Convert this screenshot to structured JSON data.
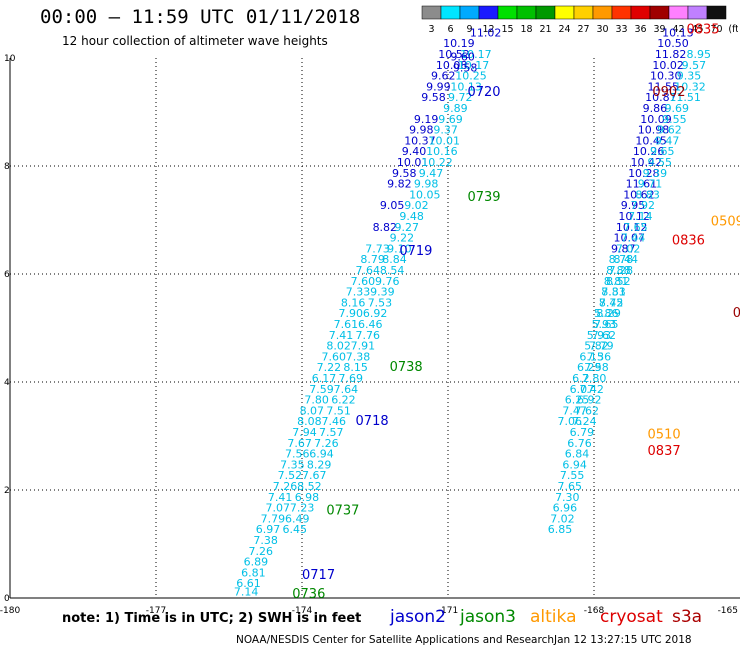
{
  "header": {
    "title": "00:00 – 11:59 UTC 01/11/2018",
    "subtitle": "12 hour collection of altimeter wave heights"
  },
  "colorbar": {
    "labels": [
      "3",
      "6",
      "9",
      "12",
      "15",
      "18",
      "21",
      "24",
      "27",
      "30",
      "33",
      "36",
      "39",
      "42",
      "45",
      "70",
      "(ft)"
    ],
    "colors": [
      "#8c8c8c",
      "#00e5ff",
      "#00aaff",
      "#1a1aff",
      "#00e000",
      "#00c000",
      "#009900",
      "#ffff00",
      "#ffd000",
      "#ff9900",
      "#ff3300",
      "#e00000",
      "#a00000",
      "#ff80ff",
      "#c080ff",
      "#101010"
    ]
  },
  "footer": {
    "note": "note: 1) Time is in UTC; 2) SWH is in feet",
    "credit": "NOAA/NESDIS Center for Satellite Applications and Research",
    "stamp": "Jan 12 13:27:15 UTC 2018",
    "satellites": [
      {
        "name": "jason2",
        "color": "#0000cc"
      },
      {
        "name": "jason3",
        "color": "#008800"
      },
      {
        "name": "altika",
        "color": "#ff9900"
      },
      {
        "name": "cryosat",
        "color": "#dd0000"
      },
      {
        "name": "s3a",
        "color": "#aa0000"
      }
    ]
  },
  "chart_data": {
    "type": "scatter",
    "xlim": [
      -180,
      -165
    ],
    "ylim": [
      0,
      10
    ],
    "xticks": [
      "-180",
      "-177",
      "-174",
      "-171",
      "-168",
      "-165"
    ],
    "yticks": [
      "0",
      "2",
      "4",
      "6",
      "8",
      "10"
    ],
    "grid": true,
    "colors": {
      "cyan": "#00bfe6",
      "blue": "#0000cc",
      "green": "#008800",
      "orange": "#ff9900",
      "red": "#dd0000",
      "darkred": "#990000"
    },
    "series": [
      {
        "name": "track-A-blue",
        "color": "blue",
        "points": [
          [
            -171.1,
            10.2,
            "10.19"
          ],
          [
            -171.2,
            10.0,
            "10.52"
          ],
          [
            -171.25,
            9.8,
            "10.08"
          ],
          [
            -171.35,
            9.6,
            "9.62"
          ],
          [
            -171.45,
            9.4,
            "9.99"
          ],
          [
            -171.55,
            9.2,
            "9.58"
          ],
          [
            -171.7,
            8.8,
            "9.19"
          ],
          [
            -171.8,
            8.6,
            "9.98"
          ],
          [
            -171.9,
            8.4,
            "10.37"
          ],
          [
            -171.95,
            8.2,
            "9.40"
          ],
          [
            -172.05,
            8.0,
            "10.01"
          ],
          [
            -172.15,
            7.8,
            "9.58"
          ],
          [
            -172.25,
            7.6,
            "9.82"
          ],
          [
            -172.4,
            7.2,
            "9.05"
          ],
          [
            -172.55,
            6.8,
            "8.82"
          ]
        ]
      },
      {
        "name": "track-A-cyan",
        "color": "cyan",
        "points": [
          [
            -172.7,
            6.4,
            "7.73"
          ],
          [
            -172.8,
            6.2,
            "8.79"
          ],
          [
            -172.9,
            6.0,
            "7.64"
          ],
          [
            -173.0,
            5.8,
            "7.60"
          ],
          [
            -173.1,
            5.6,
            "7.33"
          ],
          [
            -173.2,
            5.4,
            "8.16"
          ],
          [
            -173.25,
            5.2,
            "7.90"
          ],
          [
            -173.35,
            5.0,
            "7.61"
          ],
          [
            -173.45,
            4.8,
            "7.41"
          ],
          [
            -173.5,
            4.6,
            "8.02"
          ],
          [
            -173.6,
            4.4,
            "7.60"
          ],
          [
            -173.7,
            4.2,
            "7.22"
          ],
          [
            -173.8,
            4.0,
            "6.17"
          ],
          [
            -173.85,
            3.8,
            "7.59"
          ],
          [
            -173.95,
            3.6,
            "7.80"
          ],
          [
            -174.05,
            3.4,
            "8.07"
          ],
          [
            -174.1,
            3.2,
            "8.08"
          ],
          [
            -174.2,
            3.0,
            "7.94"
          ],
          [
            -174.3,
            2.8,
            "7.67"
          ],
          [
            -174.35,
            2.6,
            "7.56"
          ],
          [
            -174.45,
            2.4,
            "7.35"
          ],
          [
            -174.5,
            2.2,
            "7.52"
          ],
          [
            -174.6,
            2.0,
            "7.26"
          ],
          [
            -174.7,
            1.8,
            "7.41"
          ],
          [
            -174.75,
            1.6,
            "7.07"
          ],
          [
            -174.85,
            1.4,
            "7.79"
          ],
          [
            -174.95,
            1.2,
            "6.97"
          ],
          [
            -175.0,
            1.0,
            "7.38"
          ],
          [
            -175.1,
            0.8,
            "7.26"
          ],
          [
            -175.2,
            0.6,
            "6.89"
          ],
          [
            -175.25,
            0.4,
            "6.81"
          ],
          [
            -175.35,
            0.2,
            "6.61"
          ],
          [
            -175.4,
            0.05,
            "7.14"
          ]
        ]
      },
      {
        "name": "track-B-cyan",
        "color": "cyan",
        "points": [
          [
            -170.75,
            10.0,
            "10.17"
          ],
          [
            -170.8,
            9.8,
            "10.17"
          ],
          [
            -170.85,
            9.6,
            "10.25"
          ],
          [
            -170.95,
            9.4,
            "10.13"
          ],
          [
            -171.0,
            9.2,
            "9.72"
          ],
          [
            -171.1,
            9.0,
            "9.89"
          ],
          [
            -171.2,
            8.8,
            "9.69"
          ],
          [
            -171.3,
            8.6,
            "9.37"
          ],
          [
            -171.4,
            8.4,
            "10.01"
          ],
          [
            -171.45,
            8.2,
            "10.16"
          ],
          [
            -171.55,
            8.0,
            "10.22"
          ],
          [
            -171.6,
            7.8,
            "9.47"
          ],
          [
            -171.7,
            7.6,
            "9.98"
          ],
          [
            -171.8,
            7.4,
            "10.05"
          ],
          [
            -171.9,
            7.2,
            "9.02"
          ],
          [
            -172.0,
            7.0,
            "9.48"
          ],
          [
            -172.1,
            6.8,
            "9.27"
          ],
          [
            -172.2,
            6.6,
            "9.22"
          ],
          [
            -172.25,
            6.4,
            "9.10"
          ],
          [
            -172.35,
            6.2,
            "8.84"
          ],
          [
            -172.4,
            6.0,
            "8.54"
          ],
          [
            -172.5,
            5.8,
            "9.76"
          ],
          [
            -172.6,
            5.6,
            "9.39"
          ],
          [
            -172.65,
            5.4,
            "7.53"
          ],
          [
            -172.75,
            5.2,
            "6.92"
          ],
          [
            -172.85,
            5.0,
            "6.46"
          ],
          [
            -172.9,
            4.8,
            "7.76"
          ],
          [
            -173.0,
            4.6,
            "7.91"
          ],
          [
            -173.1,
            4.4,
            "7.38"
          ],
          [
            -173.15,
            4.2,
            "8.15"
          ],
          [
            -173.25,
            4.0,
            "7.69"
          ],
          [
            -173.35,
            3.8,
            "7.64"
          ],
          [
            -173.4,
            3.6,
            "6.22"
          ],
          [
            -173.5,
            3.4,
            "7.51"
          ],
          [
            -173.6,
            3.2,
            "7.46"
          ],
          [
            -173.65,
            3.0,
            "7.57"
          ],
          [
            -173.75,
            2.8,
            "7.26"
          ],
          [
            -173.85,
            2.6,
            "6.94"
          ],
          [
            -173.9,
            2.4,
            "8.29"
          ],
          [
            -174.0,
            2.2,
            "7.67"
          ],
          [
            -174.1,
            2.0,
            "8.52"
          ],
          [
            -174.15,
            1.8,
            "6.98"
          ],
          [
            -174.25,
            1.6,
            "7.23"
          ],
          [
            -174.35,
            1.4,
            "6.49"
          ],
          [
            -174.4,
            1.2,
            "6.45"
          ]
        ]
      },
      {
        "name": "track-B-blue",
        "color": "blue",
        "points": [
          [
            -170.55,
            10.4,
            "11.02"
          ],
          [
            -170.95,
            9.95,
            "9.60"
          ],
          [
            -170.9,
            9.75,
            "9.58"
          ]
        ]
      },
      {
        "name": "track-C-blue",
        "color": "blue",
        "points": [
          [
            -166.6,
            10.4,
            "10.13"
          ],
          [
            -166.7,
            10.2,
            "10.50"
          ],
          [
            -166.75,
            10.0,
            "11.82"
          ],
          [
            -166.8,
            9.8,
            "10.02"
          ],
          [
            -166.85,
            9.6,
            "10.30"
          ],
          [
            -166.9,
            9.4,
            "11.55"
          ],
          [
            -166.95,
            9.2,
            "10.87"
          ],
          [
            -167.0,
            9.0,
            "9.86"
          ],
          [
            -167.05,
            8.8,
            "10.09"
          ],
          [
            -167.1,
            8.6,
            "10.98"
          ],
          [
            -167.15,
            8.4,
            "10.45"
          ],
          [
            -167.2,
            8.2,
            "10.26"
          ],
          [
            -167.25,
            8.0,
            "10.42"
          ],
          [
            -167.3,
            7.8,
            "10.28"
          ],
          [
            -167.35,
            7.6,
            "11.61"
          ],
          [
            -167.4,
            7.4,
            "10.62"
          ],
          [
            -167.45,
            7.2,
            "9.95"
          ],
          [
            -167.5,
            7.0,
            "10.12"
          ],
          [
            -167.55,
            6.8,
            "10.12"
          ],
          [
            -167.6,
            6.6,
            "10.07"
          ],
          [
            -167.65,
            6.4,
            "9.87"
          ]
        ]
      },
      {
        "name": "track-C-cyan",
        "color": "cyan",
        "points": [
          [
            -167.7,
            6.2,
            "8.78"
          ],
          [
            -167.75,
            6.0,
            "8.88"
          ],
          [
            -167.8,
            5.8,
            "8.81"
          ],
          [
            -167.85,
            5.6,
            "8.83"
          ],
          [
            -167.9,
            5.4,
            "8.45"
          ],
          [
            -167.95,
            5.2,
            "8.29"
          ],
          [
            -168.0,
            5.0,
            "7.65"
          ],
          [
            -168.05,
            4.8,
            "7.62"
          ],
          [
            -168.1,
            4.6,
            "7.79"
          ],
          [
            -168.15,
            4.4,
            "7.36"
          ],
          [
            -168.2,
            4.2,
            "7.58"
          ],
          [
            -168.25,
            4.0,
            "7.80"
          ],
          [
            -168.3,
            3.8,
            "7.42"
          ],
          [
            -168.35,
            3.6,
            "6.92"
          ],
          [
            -168.4,
            3.4,
            "7.62"
          ],
          [
            -168.45,
            3.2,
            "7.24"
          ],
          [
            -168.5,
            3.0,
            "6.79"
          ],
          [
            -168.55,
            2.8,
            "6.76"
          ],
          [
            -168.6,
            2.6,
            "6.84"
          ],
          [
            -168.65,
            2.4,
            "6.94"
          ],
          [
            -168.7,
            2.2,
            "7.55"
          ],
          [
            -168.75,
            2.0,
            "7.65"
          ],
          [
            -168.8,
            1.8,
            "7.30"
          ],
          [
            -168.85,
            1.6,
            "6.96"
          ],
          [
            -168.9,
            1.4,
            "7.02"
          ],
          [
            -168.95,
            1.2,
            "6.85"
          ]
        ]
      },
      {
        "name": "track-D-cyan",
        "color": "cyan",
        "points": [
          [
            -166.1,
            10.0,
            "8.95"
          ],
          [
            -166.2,
            9.8,
            "9.57"
          ],
          [
            -166.3,
            9.6,
            "9.35"
          ],
          [
            -166.35,
            9.4,
            "10.32"
          ],
          [
            -166.45,
            9.2,
            "11.51"
          ],
          [
            -166.55,
            9.0,
            "9.69"
          ],
          [
            -166.6,
            8.8,
            "9.55"
          ],
          [
            -166.7,
            8.6,
            "9.62"
          ],
          [
            -166.75,
            8.4,
            "9.47"
          ],
          [
            -166.85,
            8.2,
            "9.65"
          ],
          [
            -166.9,
            8.0,
            "9.55"
          ],
          [
            -167.0,
            7.8,
            "9.39"
          ],
          [
            -167.1,
            7.6,
            "9.71"
          ],
          [
            -167.15,
            7.4,
            "8.83"
          ],
          [
            -167.25,
            7.2,
            "7.92"
          ],
          [
            -167.3,
            7.0,
            "7.14"
          ],
          [
            -167.4,
            6.8,
            "7.65"
          ],
          [
            -167.45,
            6.6,
            "7.44"
          ],
          [
            -167.55,
            6.4,
            "7.02"
          ],
          [
            -167.6,
            6.2,
            "8.44"
          ],
          [
            -167.7,
            6.0,
            "7.28"
          ],
          [
            -167.75,
            5.8,
            "8.52"
          ],
          [
            -167.85,
            5.6,
            "7.31"
          ],
          [
            -167.9,
            5.4,
            "7.72"
          ],
          [
            -168.0,
            5.2,
            "5.86"
          ],
          [
            -168.05,
            5.0,
            "5.93"
          ],
          [
            -168.15,
            4.8,
            "5.93"
          ],
          [
            -168.2,
            4.6,
            "5.82"
          ],
          [
            -168.3,
            4.4,
            "6.15"
          ],
          [
            -168.35,
            4.2,
            "6.29"
          ],
          [
            -168.45,
            4.0,
            "6.2"
          ],
          [
            -168.5,
            3.8,
            "6.07"
          ],
          [
            -168.6,
            3.6,
            "6.25"
          ],
          [
            -168.65,
            3.4,
            "7.47"
          ],
          [
            -168.75,
            3.2,
            "7.06"
          ]
        ]
      }
    ],
    "annotations": [
      {
        "x": -170.6,
        "y": 9.3,
        "text": "0720",
        "color": "blue"
      },
      {
        "x": -170.6,
        "y": 7.35,
        "text": "0739",
        "color": "green"
      },
      {
        "x": -172.0,
        "y": 6.35,
        "text": "0719",
        "color": "blue"
      },
      {
        "x": -172.2,
        "y": 4.2,
        "text": "0738",
        "color": "green"
      },
      {
        "x": -172.9,
        "y": 3.2,
        "text": "0718",
        "color": "blue"
      },
      {
        "x": -173.5,
        "y": 1.55,
        "text": "0737",
        "color": "green"
      },
      {
        "x": -174.0,
        "y": 0.35,
        "text": "0717",
        "color": "blue"
      },
      {
        "x": -174.2,
        "y": 0.0,
        "text": "0736",
        "color": "green"
      },
      {
        "x": -166.1,
        "y": 10.45,
        "text": "0835",
        "color": "red"
      },
      {
        "x": -166.8,
        "y": 9.3,
        "text": "0902",
        "color": "darkred"
      },
      {
        "x": -165.6,
        "y": 6.9,
        "text": "0509",
        "color": "orange"
      },
      {
        "x": -166.4,
        "y": 6.55,
        "text": "0836",
        "color": "red"
      },
      {
        "x": -165.15,
        "y": 5.2,
        "text": "09",
        "color": "darkred"
      },
      {
        "x": -166.9,
        "y": 2.95,
        "text": "0510",
        "color": "orange"
      },
      {
        "x": -166.9,
        "y": 2.65,
        "text": "0837",
        "color": "red"
      }
    ]
  }
}
